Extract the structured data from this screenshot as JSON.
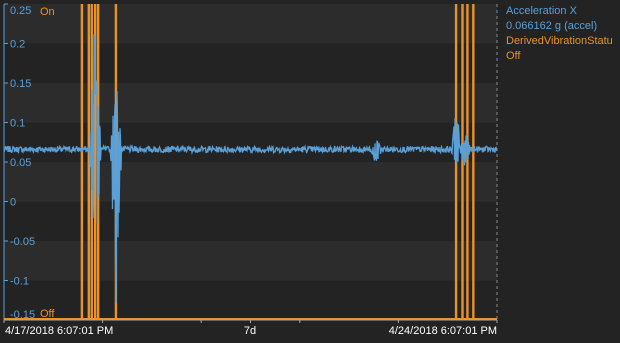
{
  "chart_data": {
    "type": "line",
    "title": "",
    "xlabel": "",
    "ylabel": "",
    "x_range": [
      "4/17/2018 6:07:01 PM",
      "4/24/2018 6:07:01 PM"
    ],
    "x_ticks": [
      "4/17/2018 6:07:01 PM",
      "7d",
      "4/24/2018 6:07:01 PM"
    ],
    "ylim": [
      -0.15,
      0.25
    ],
    "y_ticks": [
      "0.25",
      "0.2",
      "0.15",
      "0.1",
      "0.05",
      "0",
      "-0.05",
      "-0.1",
      "-0.15"
    ],
    "secondary_y_ticks": [
      "On",
      "Off"
    ],
    "grid": "alternating horizontal bands",
    "legend_position": "top-right",
    "colors": {
      "acceleration": "#5aa0d8",
      "vibration": "#e8922a",
      "background": "#232323"
    },
    "series": [
      {
        "name": "Acceleration X",
        "axis": "left",
        "color": "#5aa0d8",
        "baseline": 0.066,
        "noise": 0.004,
        "bursts": [
          {
            "x_frac": 0.185,
            "min": -0.12,
            "max": 0.25
          },
          {
            "x_frac": 0.227,
            "min": -0.14,
            "max": 0.16
          },
          {
            "x_frac": 0.755,
            "min": 0.045,
            "max": 0.08
          },
          {
            "x_frac": 0.918,
            "min": 0.035,
            "max": 0.12
          },
          {
            "x_frac": 0.935,
            "min": 0.04,
            "max": 0.09
          }
        ]
      },
      {
        "name": "DerivedVibrationStatus",
        "axis": "right",
        "color": "#e8922a",
        "on_x_frac": [
          0.158,
          0.172,
          0.178,
          0.185,
          0.191,
          0.227,
          0.917,
          0.93,
          0.94,
          0.952
        ]
      }
    ]
  },
  "legend": {
    "series1_name": "Acceleration X",
    "series1_value": "0.066162 g (accel)",
    "series2_name": "DerivedVibrationStatu",
    "series2_value": "Off"
  }
}
